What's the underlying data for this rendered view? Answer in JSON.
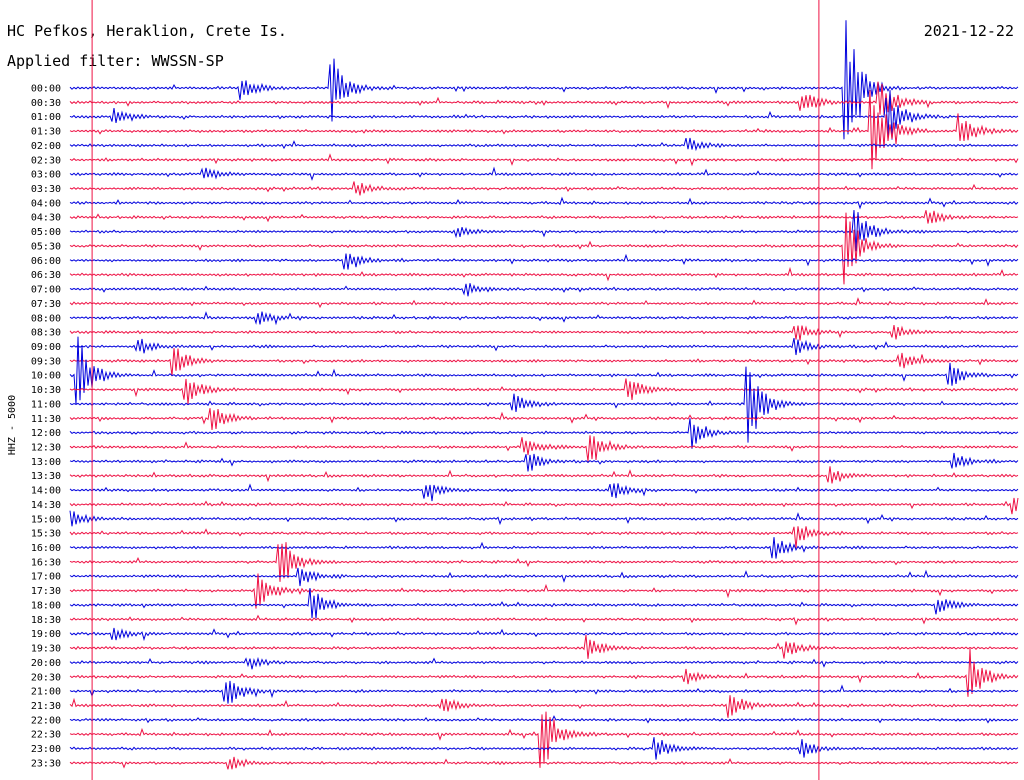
{
  "header": {
    "station": "HC Pefkos, Heraklion, Crete Is.",
    "filter": "Applied filter: WWSSN-SP",
    "date": "2021-12-22"
  },
  "chart_data": {
    "type": "line",
    "title": "HC Pefkos, Heraklion, Crete Is.",
    "subtitle": "Applied filter: WWSSN-SP",
    "date": "2021-12-22",
    "ylabel": "HHZ - 5000",
    "xlabel": "",
    "row_labels": [
      "00:00",
      "00:30",
      "01:00",
      "01:30",
      "02:00",
      "02:30",
      "03:00",
      "03:30",
      "04:00",
      "04:30",
      "05:00",
      "05:30",
      "06:00",
      "06:30",
      "07:00",
      "07:30",
      "08:00",
      "08:30",
      "09:00",
      "09:30",
      "10:00",
      "10:30",
      "11:00",
      "11:30",
      "12:00",
      "12:30",
      "13:00",
      "13:30",
      "14:00",
      "14:30",
      "15:00",
      "15:30",
      "16:00",
      "16:30",
      "17:00",
      "17:30",
      "18:00",
      "18:30",
      "19:00",
      "19:30",
      "20:00",
      "20:30",
      "21:00",
      "21:30",
      "22:00",
      "22:30",
      "23:00",
      "23:30"
    ],
    "row_minutes": 30,
    "colors": {
      "even": "#0000dd",
      "odd": "#ee1144",
      "marker": "#ee1144"
    },
    "events": [
      {
        "row": 0,
        "min": 5.4,
        "amp": 12
      },
      {
        "row": 0,
        "min": 8.2,
        "amp": 35
      },
      {
        "row": 0,
        "min": 24.5,
        "amp": 70
      },
      {
        "row": 1,
        "min": 23.1,
        "amp": 12
      },
      {
        "row": 1,
        "min": 25.6,
        "amp": 24
      },
      {
        "row": 2,
        "min": 1.3,
        "amp": 10
      },
      {
        "row": 2,
        "min": 25.8,
        "amp": 30
      },
      {
        "row": 3,
        "min": 25.3,
        "amp": 65
      },
      {
        "row": 3,
        "min": 28.1,
        "amp": 20
      },
      {
        "row": 4,
        "min": 19.5,
        "amp": 7
      },
      {
        "row": 6,
        "min": 4.2,
        "amp": 6
      },
      {
        "row": 7,
        "min": 9.0,
        "amp": 7
      },
      {
        "row": 9,
        "min": 27.1,
        "amp": 9
      },
      {
        "row": 10,
        "min": 24.8,
        "amp": 25
      },
      {
        "row": 10,
        "min": 12.2,
        "amp": 5
      },
      {
        "row": 11,
        "min": 24.5,
        "amp": 40
      },
      {
        "row": 12,
        "min": 8.7,
        "amp": 12
      },
      {
        "row": 14,
        "min": 12.5,
        "amp": 7
      },
      {
        "row": 16,
        "min": 5.9,
        "amp": 7
      },
      {
        "row": 17,
        "min": 22.9,
        "amp": 10
      },
      {
        "row": 17,
        "min": 26.0,
        "amp": 8
      },
      {
        "row": 18,
        "min": 22.9,
        "amp": 8
      },
      {
        "row": 18,
        "min": 2.1,
        "amp": 8
      },
      {
        "row": 19,
        "min": 3.2,
        "amp": 16
      },
      {
        "row": 19,
        "min": 26.2,
        "amp": 9
      },
      {
        "row": 20,
        "min": 0.2,
        "amp": 40
      },
      {
        "row": 20,
        "min": 27.8,
        "amp": 12
      },
      {
        "row": 21,
        "min": 3.6,
        "amp": 16
      },
      {
        "row": 21,
        "min": 17.6,
        "amp": 15
      },
      {
        "row": 22,
        "min": 21.4,
        "amp": 45
      },
      {
        "row": 22,
        "min": 14.0,
        "amp": 10
      },
      {
        "row": 23,
        "min": 4.4,
        "amp": 15
      },
      {
        "row": 24,
        "min": 19.6,
        "amp": 15
      },
      {
        "row": 25,
        "min": 16.4,
        "amp": 20
      },
      {
        "row": 25,
        "min": 14.3,
        "amp": 10
      },
      {
        "row": 26,
        "min": 14.4,
        "amp": 14
      },
      {
        "row": 26,
        "min": 27.9,
        "amp": 10
      },
      {
        "row": 27,
        "min": 24.0,
        "amp": 9
      },
      {
        "row": 28,
        "min": 17.1,
        "amp": 9
      },
      {
        "row": 28,
        "min": 11.2,
        "amp": 8
      },
      {
        "row": 29,
        "min": 29.8,
        "amp": 10
      },
      {
        "row": 30,
        "min": 0.0,
        "amp": 8
      },
      {
        "row": 31,
        "min": 22.9,
        "amp": 14
      },
      {
        "row": 32,
        "min": 22.2,
        "amp": 12
      },
      {
        "row": 33,
        "min": 6.6,
        "amp": 28
      },
      {
        "row": 34,
        "min": 7.2,
        "amp": 12
      },
      {
        "row": 35,
        "min": 5.9,
        "amp": 20
      },
      {
        "row": 36,
        "min": 7.6,
        "amp": 18
      },
      {
        "row": 36,
        "min": 27.4,
        "amp": 9
      },
      {
        "row": 38,
        "min": 1.3,
        "amp": 7
      },
      {
        "row": 39,
        "min": 16.3,
        "amp": 13
      },
      {
        "row": 39,
        "min": 22.6,
        "amp": 11
      },
      {
        "row": 40,
        "min": 5.6,
        "amp": 7
      },
      {
        "row": 41,
        "min": 28.4,
        "amp": 30
      },
      {
        "row": 41,
        "min": 19.4,
        "amp": 8
      },
      {
        "row": 42,
        "min": 4.9,
        "amp": 16
      },
      {
        "row": 43,
        "min": 20.8,
        "amp": 15
      },
      {
        "row": 43,
        "min": 11.8,
        "amp": 7
      },
      {
        "row": 45,
        "min": 14.9,
        "amp": 35
      },
      {
        "row": 46,
        "min": 18.5,
        "amp": 12
      },
      {
        "row": 46,
        "min": 23.1,
        "amp": 10
      },
      {
        "row": 47,
        "min": 5.0,
        "amp": 7
      }
    ]
  }
}
